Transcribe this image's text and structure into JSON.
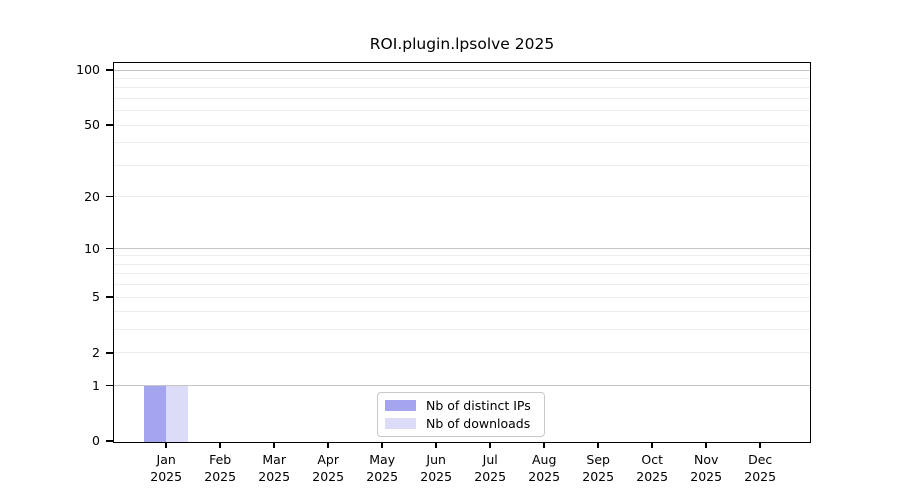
{
  "title": "ROI.plugin.lpsolve 2025",
  "colors": {
    "distinct_ips_bar": "#a5a5ef",
    "downloads_bar": "#dcdcf8",
    "grid_major": "#c6c6c6",
    "grid_minor": "#ededed",
    "axis": "#000000",
    "legend_border": "#c9c9c9",
    "background": "#ffffff"
  },
  "chart_data": {
    "type": "bar",
    "title": "ROI.plugin.lpsolve 2025",
    "categories": [
      "Jan 2025",
      "Feb 2025",
      "Mar 2025",
      "Apr 2025",
      "May 2025",
      "Jun 2025",
      "Jul 2025",
      "Aug 2025",
      "Sep 2025",
      "Oct 2025",
      "Nov 2025",
      "Dec 2025"
    ],
    "x_tick_months": [
      "Jan",
      "Feb",
      "Mar",
      "Apr",
      "May",
      "Jun",
      "Jul",
      "Aug",
      "Sep",
      "Oct",
      "Nov",
      "Dec"
    ],
    "x_tick_year": "2025",
    "series": [
      {
        "name": "Nb of distinct IPs",
        "color": "#a5a5ef",
        "values": [
          1,
          0,
          0,
          0,
          0,
          0,
          0,
          0,
          0,
          0,
          0,
          0
        ]
      },
      {
        "name": "Nb of downloads",
        "color": "#dcdcf8",
        "values": [
          1,
          0,
          0,
          0,
          0,
          0,
          0,
          0,
          0,
          0,
          0,
          0
        ]
      }
    ],
    "xlabel": "",
    "ylabel": "",
    "y_axis": {
      "scale": "log1p",
      "tick_values": [
        0,
        1,
        2,
        5,
        10,
        20,
        50,
        100
      ],
      "tick_labels": [
        "0",
        "1",
        "2",
        "5",
        "10",
        "20",
        "50",
        "100"
      ],
      "major_grid_values": [
        1,
        10,
        100
      ],
      "minor_grid_values": [
        2,
        3,
        4,
        5,
        6,
        7,
        8,
        9,
        20,
        30,
        40,
        50,
        60,
        70,
        80,
        90
      ],
      "ylim": [
        0,
        110
      ]
    },
    "grid": true,
    "legend": {
      "position": "lower center",
      "entries": [
        "Nb of distinct IPs",
        "Nb of downloads"
      ]
    }
  }
}
